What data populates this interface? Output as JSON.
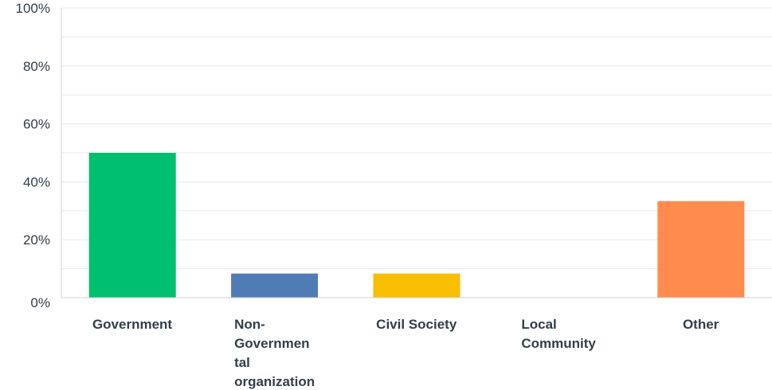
{
  "chart_data": {
    "type": "bar",
    "categories": [
      [
        "Government"
      ],
      [
        "Non-",
        "Governmen",
        "tal",
        "organization"
      ],
      [
        "Civil Society"
      ],
      [
        "Local",
        "Community"
      ],
      [
        "Other"
      ]
    ],
    "values": [
      50,
      8.33,
      8.33,
      0,
      33.33
    ],
    "colors": [
      "#00bf6f",
      "#507cb6",
      "#f9be00",
      "#6bc8cd",
      "#ff8b4f"
    ],
    "ylim": [
      0,
      100
    ],
    "yticks": [
      0,
      20,
      40,
      60,
      80,
      100
    ],
    "ytick_labels": [
      "0%",
      "20%",
      "40%",
      "60%",
      "80%",
      "100%"
    ],
    "grid": true,
    "gridline_color": "#e8eaeb",
    "axis_color": "#d0d3d6",
    "title": "",
    "xlabel": "",
    "ylabel": ""
  }
}
